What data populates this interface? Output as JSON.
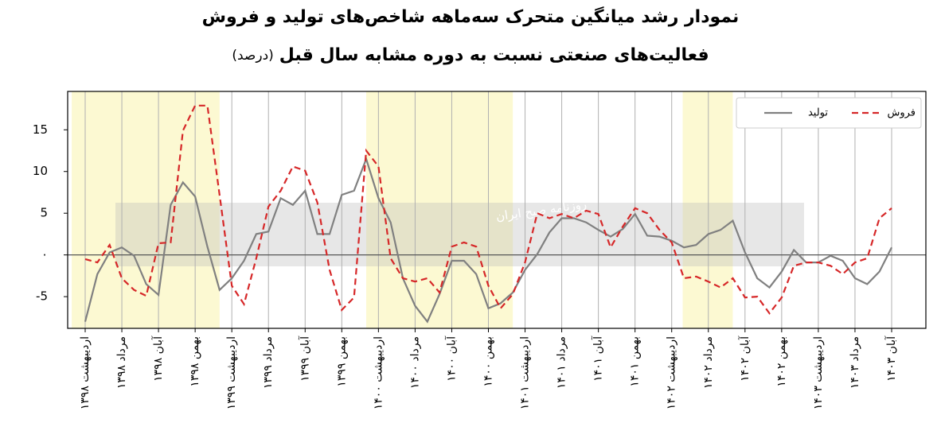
{
  "chart_data": {
    "type": "line",
    "title": [
      "نمودار رشد میانگین متحرک سه‌ماهه شاخص‌های تولید و فروش",
      "فعالیت‌های صنعتی نسبت به دوره مشابه سال قبل"
    ],
    "title_unit": "(درصد)",
    "watermark": "روزنامه صبح ایران",
    "categories": [
      "اردیبهشت ۱۳۹۸",
      null,
      null,
      "مرداد ۱۳۹۸",
      null,
      null,
      "آبان ۱۳۹۸",
      null,
      null,
      "بهمن ۱۳۹۸",
      null,
      null,
      "اردیبهشت ۱۳۹۹",
      null,
      null,
      "مرداد ۱۳۹۹",
      null,
      null,
      "آبان ۱۳۹۹",
      null,
      null,
      "بهمن ۱۳۹۹",
      null,
      null,
      "اردیبهشت ۱۴۰۰",
      null,
      null,
      "مرداد ۱۴۰۰",
      null,
      null,
      "آبان ۱۴۰۰",
      null,
      null,
      "بهمن ۱۴۰۰",
      null,
      null,
      "اردیبهشت ۱۴۰۱",
      null,
      null,
      "مرداد ۱۴۰۱",
      null,
      null,
      "آبان ۱۴۰۱",
      null,
      null,
      "بهمن ۱۴۰۱",
      null,
      null,
      "اردیبهشت ۱۴۰۲",
      null,
      null,
      "مرداد ۱۴۰۲",
      null,
      null,
      "آبان ۱۴۰۲",
      null,
      null,
      "بهمن ۱۴۰۲",
      null,
      null,
      "اردیبهشت ۱۴۰۳",
      null,
      null,
      "مرداد ۱۴۰۳",
      null,
      null,
      "آبان ۱۴۰۳"
    ],
    "series": [
      {
        "name": "تولید",
        "color": "#808080",
        "dash": "solid",
        "values": [
          -8,
          -2.3,
          0.3,
          0.9,
          -0.1,
          -3.5,
          -4.8,
          6,
          8.7,
          7,
          1,
          -4.2,
          -2.8,
          -0.7,
          2.5,
          2.8,
          6.8,
          6,
          7.7,
          2.5,
          2.5,
          7.2,
          7.7,
          11.5,
          6.8,
          3.9,
          -2.8,
          -6.1,
          -8,
          -4.7,
          -0.7,
          -0.7,
          -2.3,
          -6.4,
          -5.8,
          -4.5,
          -1.8,
          0.1,
          2.7,
          4.4,
          4.4,
          3.9,
          3,
          2.2,
          3.1,
          4.9,
          2.3,
          2.2,
          1.7,
          0.9,
          1.2,
          2.5,
          3,
          4.1,
          0.3,
          -2.8,
          -3.9,
          -2,
          0.6,
          -0.9,
          -0.9,
          -0.1,
          -0.7,
          -2.8,
          -3.5,
          -2,
          0.9
        ]
      },
      {
        "name": "فروش",
        "color": "#d62728",
        "dash": "dashed",
        "values": [
          -0.5,
          -0.9,
          1.2,
          -2.8,
          -4.2,
          -4.9,
          1.4,
          1.5,
          14.9,
          17.9,
          17.9,
          7.2,
          -3.7,
          -5.9,
          -0.4,
          5.8,
          7.7,
          10.6,
          10.1,
          6.3,
          -1.8,
          -6.6,
          -5.1,
          12.5,
          10.6,
          -0.4,
          -2.8,
          -3.2,
          -2.8,
          -4.5,
          1,
          1.5,
          1,
          -3.7,
          -6.4,
          -4.7,
          -0.9,
          5,
          4.4,
          4.9,
          4.4,
          5.3,
          4.9,
          0.9,
          3.4,
          5.6,
          5,
          3,
          1.5,
          -2.8,
          -2.6,
          -3.2,
          -3.9,
          -2.8,
          -5.1,
          -5,
          -7,
          -5.1,
          -1.3,
          -0.9,
          -0.9,
          -1.3,
          -2.3,
          -0.9,
          -0.4,
          4.4,
          5.6
        ]
      }
    ],
    "shaded_ranges": [
      [
        -1.1,
        11
      ],
      [
        23,
        35
      ],
      [
        48.9,
        53
      ]
    ],
    "shade_color": "#fcf9d2",
    "ylim": [
      -8.8,
      19.6
    ],
    "yticks": [
      -5,
      {
        "value": 0,
        "label": "٠"
      },
      5,
      10,
      15
    ],
    "zero_line": true,
    "grid": "x",
    "legend": "upper right"
  }
}
